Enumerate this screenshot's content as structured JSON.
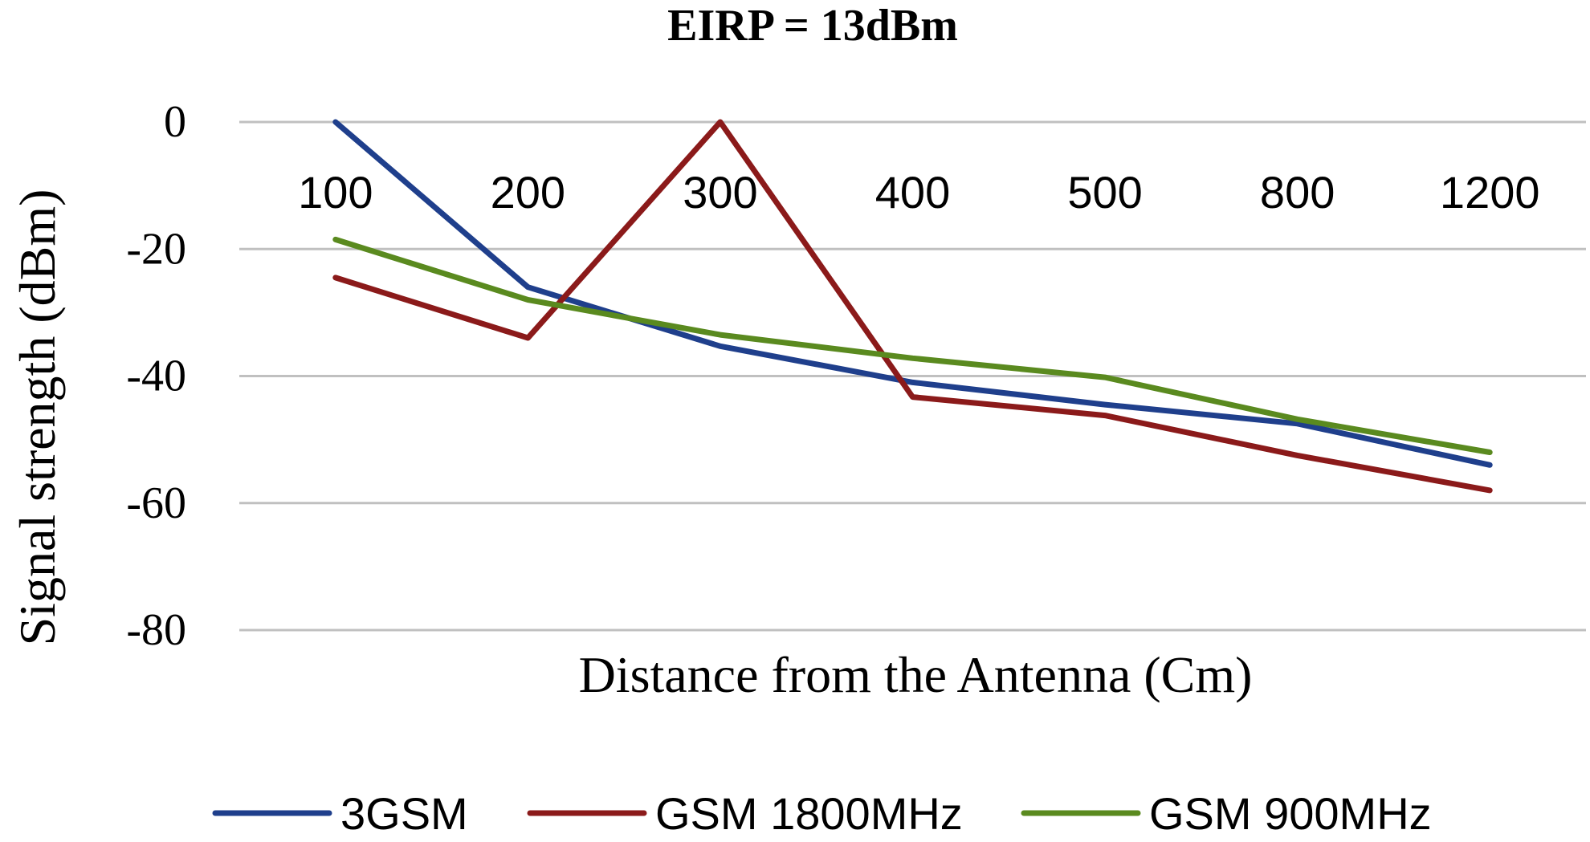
{
  "chart_data": {
    "type": "line",
    "title": "EIRP = 13dBm",
    "xlabel": "Distance from the Antenna (Cm)",
    "ylabel": "Signal strength (dBm)",
    "categories": [
      "100",
      "200",
      "300",
      "400",
      "500",
      "800",
      "1200"
    ],
    "yticks": [
      "0",
      "-20",
      "-40",
      "-60",
      "-80"
    ],
    "ylim": [
      -80,
      0
    ],
    "grid": true,
    "legend_position": "bottom",
    "series": [
      {
        "name": "3GSM",
        "color": "#1f3f8c",
        "values": [
          0,
          -26,
          -35.3,
          -41,
          -44.5,
          -47.5,
          -54
        ]
      },
      {
        "name": "GSM 1800MHz",
        "color": "#8b1a1a",
        "values": [
          -24.5,
          -34,
          0,
          -43.3,
          -46.2,
          -52.5,
          -58
        ]
      },
      {
        "name": "GSM 900MHz",
        "color": "#5a8a1f",
        "values": [
          -18.5,
          -28,
          -33.5,
          -37.2,
          -40.2,
          -46.8,
          -52
        ]
      }
    ]
  }
}
